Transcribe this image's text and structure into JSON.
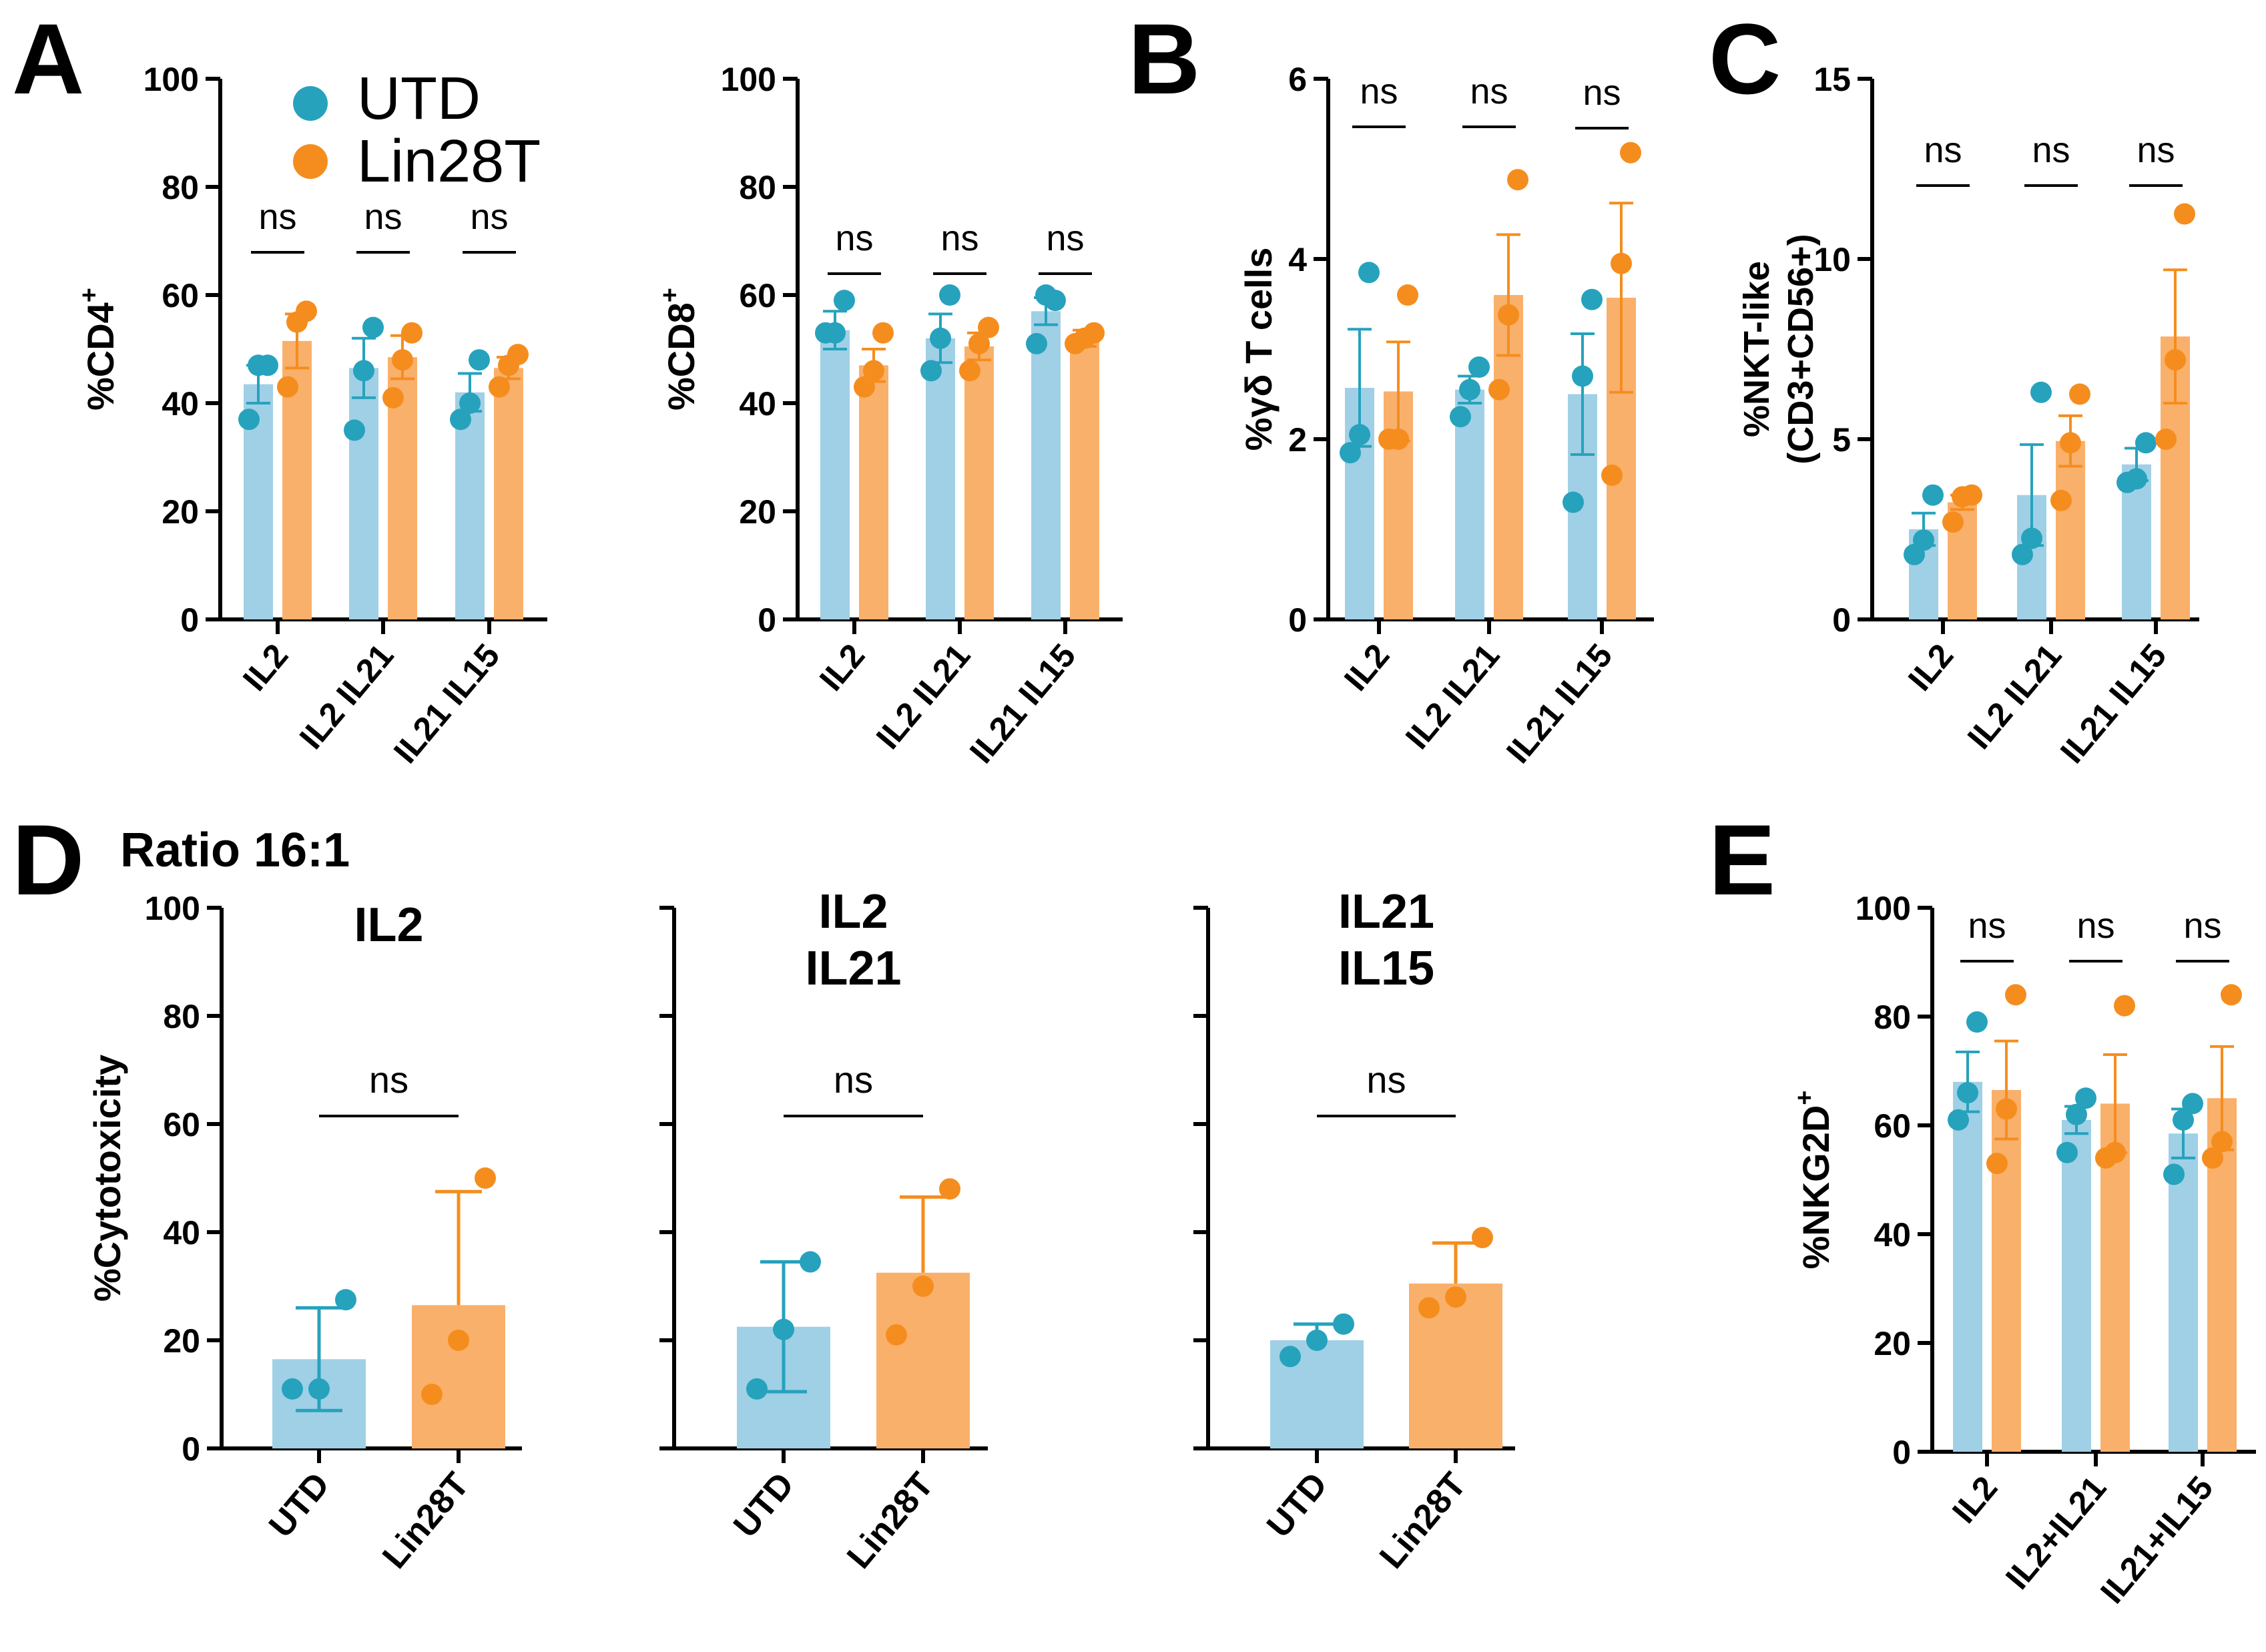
{
  "colors": {
    "utd_bar": "#9fd0e6",
    "utd_dot": "#26a2bd",
    "lin_bar": "#f9b06b",
    "lin_dot": "#f58d1e",
    "axis": "#000000"
  },
  "legend": {
    "items": [
      {
        "label": "UTD",
        "color": "#26a2bd"
      },
      {
        "label": "Lin28T",
        "color": "#f58d1e"
      }
    ]
  },
  "panel_letters": {
    "A": "A",
    "B": "B",
    "C": "C",
    "D": "D",
    "E": "E"
  },
  "panel_d_title": "Ratio 16:1",
  "chart_data": [
    {
      "id": "cd4",
      "panel": "A",
      "type": "bar",
      "ylabel": "%CD4",
      "ylabel_sup": "+",
      "ylim": [
        0,
        100
      ],
      "ticks": [
        0,
        20,
        40,
        60,
        80,
        100
      ],
      "categories": [
        "IL2",
        "IL2 IL21",
        "IL21 IL15"
      ],
      "series": [
        {
          "name": "UTD",
          "means": [
            43.5,
            46.5,
            42.0
          ],
          "err_up": [
            3.5,
            5.5,
            3.5
          ],
          "err_down": [
            3.5,
            5.5,
            3.5
          ],
          "points": [
            [
              37,
              47,
              47
            ],
            [
              35,
              46,
              54
            ],
            [
              37,
              40,
              48
            ]
          ]
        },
        {
          "name": "Lin28T",
          "means": [
            51.5,
            48.5,
            46.5
          ],
          "err_up": [
            5.0,
            4.0,
            2.0
          ],
          "err_down": [
            5.0,
            4.0,
            2.0
          ],
          "points": [
            [
              43,
              55,
              57
            ],
            [
              41,
              48,
              53
            ],
            [
              43,
              47,
              49
            ]
          ]
        }
      ],
      "annotations": [
        "ns",
        "ns",
        "ns"
      ]
    },
    {
      "id": "cd8",
      "panel": "A",
      "type": "bar",
      "ylabel": "%CD8",
      "ylabel_sup": "+",
      "ylim": [
        0,
        100
      ],
      "ticks": [
        0,
        20,
        40,
        60,
        80,
        100
      ],
      "categories": [
        "IL2",
        "IL2 IL21",
        "IL21 IL15"
      ],
      "series": [
        {
          "name": "UTD",
          "means": [
            53.5,
            52.0,
            57.0
          ],
          "err_up": [
            3.5,
            4.5,
            2.5
          ],
          "err_down": [
            3.5,
            4.5,
            2.5
          ],
          "points": [
            [
              53,
              53,
              59
            ],
            [
              46,
              52,
              60
            ],
            [
              51,
              60,
              59
            ]
          ]
        },
        {
          "name": "Lin28T",
          "means": [
            47.0,
            50.5,
            52.0
          ],
          "err_up": [
            3.0,
            2.5,
            1.5
          ],
          "err_down": [
            3.0,
            2.5,
            1.5
          ],
          "points": [
            [
              43,
              46,
              53
            ],
            [
              46,
              51,
              54
            ],
            [
              51,
              52,
              53
            ]
          ]
        }
      ],
      "annotations": [
        "ns",
        "ns",
        "ns"
      ]
    },
    {
      "id": "gd",
      "panel": "B",
      "type": "bar",
      "ylabel": "%γδ T cells",
      "ylabel_sup": "",
      "ylim": [
        0,
        6
      ],
      "ticks": [
        0,
        2,
        4,
        6
      ],
      "categories": [
        "IL2",
        "IL2 IL21",
        "IL21 IL15"
      ],
      "series": [
        {
          "name": "UTD",
          "means": [
            2.57,
            2.55,
            2.5
          ],
          "err_up": [
            0.65,
            0.15,
            0.67
          ],
          "err_down": [
            0.65,
            0.15,
            0.67
          ],
          "points": [
            [
              1.85,
              2.05,
              3.85
            ],
            [
              2.25,
              2.55,
              2.8
            ],
            [
              1.3,
              2.7,
              3.55
            ]
          ]
        },
        {
          "name": "Lin28T",
          "means": [
            2.53,
            3.6,
            3.57
          ],
          "err_up": [
            0.55,
            0.67,
            1.05
          ],
          "err_down": [
            0.55,
            0.67,
            1.05
          ],
          "points": [
            [
              2.0,
              2.0,
              3.6
            ],
            [
              2.55,
              3.38,
              4.88
            ],
            [
              1.6,
              3.95,
              5.18
            ]
          ]
        }
      ],
      "annotations": [
        "ns",
        "ns",
        "ns"
      ]
    },
    {
      "id": "nkt",
      "panel": "C",
      "type": "bar",
      "ylabel": "%NKT-like",
      "ylabel2": "(CD3+CD56+)",
      "ylim": [
        0,
        15
      ],
      "ticks": [
        0,
        5,
        10,
        15
      ],
      "categories": [
        "IL2",
        "IL2 IL21",
        "IL21 IL15"
      ],
      "series": [
        {
          "name": "UTD",
          "means": [
            2.5,
            3.45,
            4.3
          ],
          "err_up": [
            0.45,
            1.4,
            0.45
          ],
          "err_down": [
            0.45,
            1.4,
            0.45
          ],
          "points": [
            [
              1.8,
              2.2,
              3.45
            ],
            [
              1.8,
              2.25,
              6.3
            ],
            [
              3.8,
              3.9,
              4.9
            ]
          ]
        },
        {
          "name": "Lin28T",
          "means": [
            3.25,
            4.95,
            7.85
          ],
          "err_up": [
            0.2,
            0.7,
            1.85
          ],
          "err_down": [
            0.2,
            0.7,
            1.85
          ],
          "points": [
            [
              2.7,
              3.4,
              3.45
            ],
            [
              3.3,
              4.9,
              6.25
            ],
            [
              5.0,
              7.2,
              11.25
            ]
          ]
        }
      ],
      "annotations": [
        "ns",
        "ns",
        "ns"
      ]
    },
    {
      "id": "cyt_il2",
      "panel": "D",
      "type": "bar",
      "title": [
        "IL2"
      ],
      "ylabel": "%Cytotoxicity",
      "ylim": [
        0,
        100
      ],
      "ticks": [
        0,
        20,
        40,
        60,
        80,
        100
      ],
      "categories": [
        "UTD",
        "Lin28T"
      ],
      "bars": [
        {
          "mean": 16.5,
          "err_up": 9.5,
          "err_down": 9.5,
          "points": [
            11,
            11,
            27.5
          ]
        },
        {
          "mean": 26.5,
          "err_up": 21.0,
          "err_down": 0,
          "points": [
            10,
            20,
            50
          ]
        }
      ],
      "annotation": "ns"
    },
    {
      "id": "cyt_il2il21",
      "panel": "D",
      "type": "bar",
      "title": [
        "IL2",
        "IL21"
      ],
      "ylabel": "",
      "ylim": [
        0,
        100
      ],
      "ticks": [
        0,
        20,
        40,
        60,
        80,
        100
      ],
      "categories": [
        "UTD",
        "Lin28T"
      ],
      "bars": [
        {
          "mean": 22.5,
          "err_up": 12.0,
          "err_down": 12.0,
          "points": [
            11,
            22,
            34.5
          ]
        },
        {
          "mean": 32.5,
          "err_up": 14.0,
          "err_down": 0,
          "points": [
            21,
            30,
            48
          ]
        }
      ],
      "annotation": "ns"
    },
    {
      "id": "cyt_il21il15",
      "panel": "D",
      "type": "bar",
      "title": [
        "IL21",
        "IL15"
      ],
      "ylabel": "",
      "ylim": [
        0,
        100
      ],
      "ticks": [
        0,
        20,
        40,
        60,
        80,
        100
      ],
      "categories": [
        "UTD",
        "Lin28T"
      ],
      "bars": [
        {
          "mean": 20.0,
          "err_up": 3.0,
          "err_down": 0,
          "points": [
            17,
            20,
            23
          ]
        },
        {
          "mean": 30.5,
          "err_up": 7.5,
          "err_down": 0,
          "points": [
            26,
            28,
            39
          ]
        }
      ],
      "annotation": "ns"
    },
    {
      "id": "nkg2d",
      "panel": "E",
      "type": "bar",
      "ylabel": "%NKG2D",
      "ylabel_sup": "+",
      "ylim": [
        0,
        100
      ],
      "ticks": [
        0,
        20,
        40,
        60,
        80,
        100
      ],
      "categories": [
        "IL2",
        "IL2+IL21",
        "IL21+IL15"
      ],
      "series": [
        {
          "name": "UTD",
          "means": [
            68.0,
            61.0,
            58.5
          ],
          "err_up": [
            5.5,
            2.5,
            4.5
          ],
          "err_down": [
            5.5,
            2.5,
            4.5
          ],
          "points": [
            [
              61,
              66,
              79
            ],
            [
              55,
              62,
              65
            ],
            [
              51,
              61,
              64
            ]
          ]
        },
        {
          "name": "Lin28T",
          "means": [
            66.5,
            64.0,
            65.0
          ],
          "err_up": [
            9.0,
            9.0,
            9.5
          ],
          "err_down": [
            9.0,
            9.0,
            9.5
          ],
          "points": [
            [
              53,
              63,
              84
            ],
            [
              54,
              55,
              82
            ],
            [
              54,
              57,
              84
            ]
          ]
        }
      ],
      "annotations": [
        "ns",
        "ns",
        "ns"
      ]
    }
  ]
}
